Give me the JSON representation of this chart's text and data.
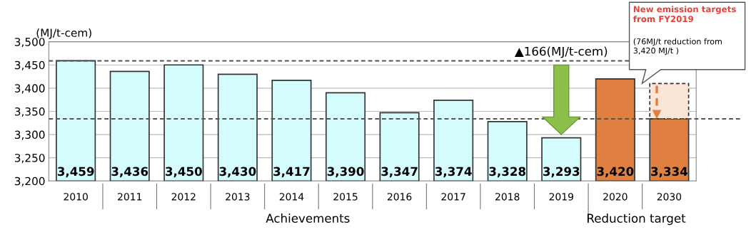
{
  "chart_data": {
    "type": "bar",
    "ylabel": "(MJ/t-cem)",
    "categories": [
      "2010",
      "2011",
      "2012",
      "2013",
      "2014",
      "2015",
      "2016",
      "2017",
      "2018",
      "2019",
      "2020",
      "2030"
    ],
    "series": [
      {
        "colors": [
          "#d4fcfd",
          "#d4fcfd",
          "#d4fcfd",
          "#d4fcfd",
          "#d4fcfd",
          "#d4fcfd",
          "#d4fcfd",
          "#d4fcfd",
          "#d4fcfd",
          "#d4fcfd",
          "#e08040",
          "#e08040"
        ],
        "values": [
          3459,
          3436,
          3450,
          3430,
          3417,
          3390,
          3347,
          3374,
          3328,
          3293,
          3420,
          3334
        ],
        "value_labels": [
          "3,459",
          "3,436",
          "3,450",
          "3,430",
          "3,417",
          "3,390",
          "3,347",
          "3,374",
          "3,328",
          "3,293",
          "3,420",
          "3,334"
        ]
      },
      {
        "color": "#fbe5d6",
        "line_style": "dashed",
        "base": [
          null,
          null,
          null,
          null,
          null,
          null,
          null,
          null,
          null,
          null,
          null,
          3334
        ],
        "values": [
          null,
          null,
          null,
          null,
          null,
          null,
          null,
          null,
          null,
          null,
          null,
          76
        ]
      }
    ],
    "ylim": [
      3200,
      3500
    ],
    "yticks": [
      {
        "value": 3200,
        "label": "3,200"
      },
      {
        "value": 3250,
        "label": "3,250"
      },
      {
        "value": 3300,
        "label": "3,300"
      },
      {
        "value": 3350,
        "label": "3,350"
      },
      {
        "value": 3400,
        "label": "3,400"
      },
      {
        "value": 3450,
        "label": "3,450"
      },
      {
        "value": 3500,
        "label": "3,500"
      }
    ],
    "grid": "y",
    "ref_lines": [
      {
        "axis": "y",
        "value": 3459,
        "line_style": "dashed",
        "color": "#555555"
      },
      {
        "axis": "y",
        "value": 3334,
        "line_style": "dashed",
        "color": "#555555"
      }
    ],
    "annotations": [
      "New emission targets\nfrom FY2019",
      "(76MJ/t reduction from\n3,420 MJ/t )",
      {
        "text": "▲166(MJ/t-cem)",
        "x": "2019",
        "y": 3459
      },
      "Achievements",
      "Reduction target"
    ]
  }
}
